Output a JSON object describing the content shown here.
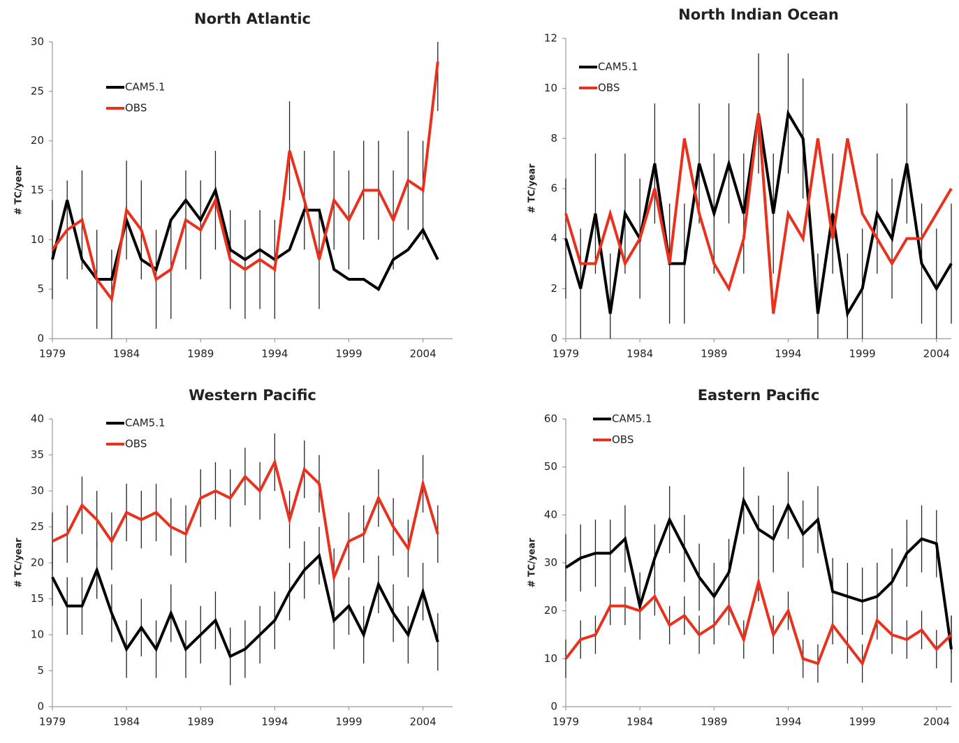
{
  "chart_data": [
    {
      "type": "line",
      "title": "North Atlantic",
      "y_label": "# TC/year",
      "x": [
        1979,
        1980,
        1981,
        1982,
        1983,
        1984,
        1985,
        1986,
        1987,
        1988,
        1989,
        1990,
        1991,
        1992,
        1993,
        1994,
        1995,
        1996,
        1997,
        1998,
        1999,
        2000,
        2001,
        2002,
        2003,
        2004,
        2005
      ],
      "xlim": [
        1979,
        2006
      ],
      "xticks": [
        1979,
        1984,
        1989,
        1994,
        1999,
        2004
      ],
      "ylim": [
        0,
        30
      ],
      "yticks": [
        0,
        5,
        10,
        15,
        20,
        25,
        30
      ],
      "series": [
        {
          "name": "CAM5.1",
          "color": "#000000",
          "values": [
            8,
            14,
            8,
            6,
            6,
            12,
            8,
            7,
            12,
            14,
            12,
            15,
            9,
            8,
            9,
            8,
            9,
            13,
            13,
            7,
            6,
            6,
            5,
            8,
            9,
            11,
            8
          ]
        },
        {
          "name": "OBS",
          "color": "#e8321e",
          "values": [
            9,
            11,
            12,
            6,
            4,
            13,
            11,
            6,
            7,
            12,
            11,
            14,
            8,
            7,
            8,
            7,
            19,
            14,
            8,
            14,
            12,
            15,
            15,
            12,
            16,
            15,
            28
          ],
          "errors": [
            5,
            5,
            5,
            5,
            5,
            5,
            5,
            5,
            5,
            5,
            5,
            5,
            5,
            5,
            5,
            5,
            5,
            5,
            5,
            5,
            5,
            5,
            5,
            5,
            5,
            5,
            5
          ]
        }
      ]
    },
    {
      "type": "line",
      "title": "North Indian Ocean",
      "y_label": "# TC/year",
      "x": [
        1979,
        1980,
        1981,
        1982,
        1983,
        1984,
        1985,
        1986,
        1987,
        1988,
        1989,
        1990,
        1991,
        1992,
        1993,
        1994,
        1995,
        1996,
        1997,
        1998,
        1999,
        2000,
        2001,
        2002,
        2003,
        2004,
        2005
      ],
      "xlim": [
        1979,
        2005
      ],
      "xticks": [
        1979,
        1984,
        1989,
        1994,
        1999,
        2004
      ],
      "ylim": [
        0,
        12
      ],
      "yticks": [
        0,
        2,
        4,
        6,
        8,
        10,
        12
      ],
      "series": [
        {
          "name": "CAM5.1",
          "color": "#000000",
          "values": [
            4,
            2,
            5,
            1,
            5,
            4,
            7,
            3,
            3,
            7,
            5,
            7,
            5,
            9,
            5,
            9,
            8,
            1,
            5,
            1,
            2,
            5,
            4,
            7,
            3,
            2,
            3
          ],
          "errors": [
            2.4,
            2.4,
            2.4,
            2.4,
            2.4,
            2.4,
            2.4,
            2.4,
            2.4,
            2.4,
            2.4,
            2.4,
            2.4,
            2.4,
            2.4,
            2.4,
            2.4,
            2.4,
            2.4,
            2.4,
            2.4,
            2.4,
            2.4,
            2.4,
            2.4,
            2.4,
            2.4
          ]
        },
        {
          "name": "OBS",
          "color": "#e8321e",
          "values": [
            5,
            3,
            3,
            5,
            3,
            4,
            6,
            3,
            8,
            5,
            3,
            2,
            4,
            9,
            1,
            5,
            4,
            8,
            4,
            8,
            5,
            4,
            3,
            4,
            4,
            5,
            6
          ]
        }
      ]
    },
    {
      "type": "line",
      "title": "Western Pacific",
      "y_label": "# TC/year",
      "x": [
        1979,
        1980,
        1981,
        1982,
        1983,
        1984,
        1985,
        1986,
        1987,
        1988,
        1989,
        1990,
        1991,
        1992,
        1993,
        1994,
        1995,
        1996,
        1997,
        1998,
        1999,
        2000,
        2001,
        2002,
        2003,
        2004,
        2005
      ],
      "xlim": [
        1979,
        2006
      ],
      "xticks": [
        1979,
        1984,
        1989,
        1994,
        1999,
        2004
      ],
      "ylim": [
        0,
        40
      ],
      "yticks": [
        0,
        5,
        10,
        15,
        20,
        25,
        30,
        35,
        40
      ],
      "series": [
        {
          "name": "CAM5.1",
          "color": "#000000",
          "values": [
            18,
            14,
            14,
            19,
            13,
            8,
            11,
            8,
            13,
            8,
            10,
            12,
            7,
            8,
            10,
            12,
            16,
            19,
            21,
            12,
            14,
            10,
            17,
            13,
            10,
            16,
            9
          ],
          "errors": [
            4,
            4,
            4,
            4,
            4,
            4,
            4,
            4,
            4,
            4,
            4,
            4,
            4,
            4,
            4,
            4,
            4,
            4,
            4,
            4,
            4,
            4,
            4,
            4,
            4,
            4,
            4
          ]
        },
        {
          "name": "OBS",
          "color": "#e8321e",
          "values": [
            23,
            24,
            28,
            26,
            23,
            27,
            26,
            27,
            25,
            24,
            29,
            30,
            29,
            32,
            30,
            34,
            26,
            33,
            31,
            18,
            23,
            24,
            29,
            25,
            22,
            31,
            24
          ],
          "errors": [
            4,
            4,
            4,
            4,
            4,
            4,
            4,
            4,
            4,
            4,
            4,
            4,
            4,
            4,
            4,
            4,
            4,
            4,
            4,
            4,
            4,
            4,
            4,
            4,
            4,
            4,
            4
          ]
        }
      ]
    },
    {
      "type": "line",
      "title": "Eastern Pacific",
      "y_label": "# TC/year",
      "x": [
        1979,
        1980,
        1981,
        1982,
        1983,
        1984,
        1985,
        1986,
        1987,
        1988,
        1989,
        1990,
        1991,
        1992,
        1993,
        1994,
        1995,
        1996,
        1997,
        1998,
        1999,
        2000,
        2001,
        2002,
        2003,
        2004,
        2005
      ],
      "xlim": [
        1979,
        2005
      ],
      "xticks": [
        1979,
        1984,
        1989,
        1994,
        1999,
        2004
      ],
      "ylim": [
        0,
        60
      ],
      "yticks": [
        0,
        10,
        20,
        30,
        40,
        50,
        60
      ],
      "series": [
        {
          "name": "CAM5.1",
          "color": "#000000",
          "values": [
            29,
            31,
            32,
            32,
            35,
            21,
            31,
            39,
            33,
            27,
            23,
            28,
            43,
            37,
            35,
            42,
            36,
            39,
            24,
            23,
            22,
            23,
            26,
            32,
            35,
            34,
            12
          ],
          "errors": [
            7,
            7,
            7,
            7,
            7,
            7,
            7,
            7,
            7,
            7,
            7,
            7,
            7,
            7,
            7,
            7,
            7,
            7,
            7,
            7,
            7,
            7,
            7,
            7,
            7,
            7,
            7
          ]
        },
        {
          "name": "OBS",
          "color": "#e8321e",
          "values": [
            10,
            14,
            15,
            21,
            21,
            20,
            23,
            17,
            19,
            15,
            17,
            21,
            14,
            26,
            15,
            20,
            10,
            9,
            17,
            13,
            9,
            18,
            15,
            14,
            16,
            12,
            15
          ],
          "errors": [
            4,
            4,
            4,
            4,
            4,
            4,
            4,
            4,
            4,
            4,
            4,
            4,
            4,
            4,
            4,
            4,
            4,
            4,
            4,
            4,
            4,
            4,
            4,
            4,
            4,
            4,
            4
          ]
        }
      ]
    }
  ]
}
